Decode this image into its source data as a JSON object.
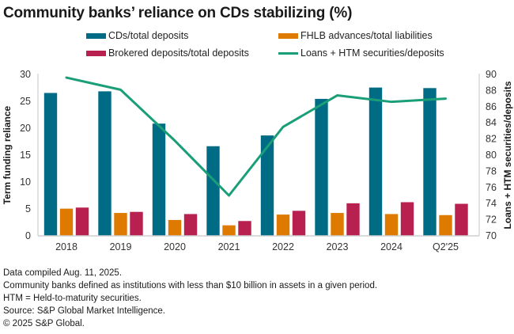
{
  "chart_data": {
    "type": "bar",
    "title": "Community banks’ reliance on CDs stabilizing (%)",
    "categories": [
      "2018",
      "2019",
      "2020",
      "2021",
      "2022",
      "2023",
      "2024",
      "Q2'25"
    ],
    "ylabel": "Term funding reliance",
    "ylabel_right": "Loans + HTM securities/deposits",
    "ylim": [
      0,
      30
    ],
    "yticks": [
      0,
      5,
      10,
      15,
      20,
      25,
      30
    ],
    "ylim_right": [
      70,
      90
    ],
    "yticks_right": [
      70,
      72,
      74,
      76,
      78,
      80,
      82,
      84,
      86,
      88,
      90
    ],
    "grid": false,
    "legend_position": "top",
    "series": [
      {
        "name": "CDs/total deposits",
        "type": "bar",
        "axis": "left",
        "color": "#006B85",
        "values": [
          26.6,
          26.9,
          20.9,
          16.7,
          18.7,
          25.5,
          27.6,
          27.5
        ]
      },
      {
        "name": "FHLB advances/total liabilities",
        "type": "bar",
        "axis": "left",
        "color": "#DE7A00",
        "values": [
          5.1,
          4.3,
          3.0,
          2.0,
          4.0,
          4.3,
          4.1,
          3.9
        ]
      },
      {
        "name": "Brokered deposits/total deposits",
        "type": "bar",
        "axis": "left",
        "color": "#B8204F",
        "values": [
          5.3,
          4.5,
          4.1,
          2.8,
          4.7,
          6.1,
          6.3,
          6.0
        ]
      },
      {
        "name": "Loans + HTM securities/deposits",
        "type": "line",
        "axis": "right",
        "color": "#1A9E78",
        "values": [
          89.6,
          88.1,
          81.8,
          75.0,
          83.5,
          87.4,
          86.6,
          87.0
        ]
      }
    ]
  },
  "legend": {
    "cds": "CDs/total deposits",
    "fhlb": "FHLB advances/total liabilities",
    "brokered": "Brokered deposits/total deposits",
    "loans": "Loans + HTM securities/deposits"
  },
  "footnotes": [
    "Data compiled Aug. 11, 2025.",
    "Community banks defined as institutions with less than $10 billion in assets in a given period.",
    "HTM = Held-to-maturity securities.",
    "Source: S&P Global Market Intelligence.",
    "© 2025 S&P Global."
  ]
}
